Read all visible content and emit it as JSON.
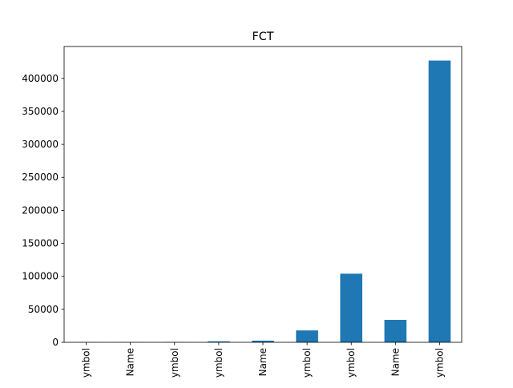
{
  "chart_data": {
    "type": "bar",
    "title": "FCT",
    "xlabel": "",
    "ylabel": "",
    "categories": [
      "ymbol",
      "Name",
      "ymbol",
      "ymbol",
      "Name",
      "ymbol",
      "ymbol",
      "Name",
      "ymbol"
    ],
    "values": [
      200,
      300,
      400,
      1500,
      2500,
      18000,
      104000,
      34000,
      427000
    ],
    "ylim": [
      0,
      448350
    ],
    "yticks": [
      0,
      50000,
      100000,
      150000,
      200000,
      250000,
      300000,
      350000,
      400000
    ],
    "grid": false,
    "legend": "none",
    "bar_color": "#1f77b4"
  }
}
